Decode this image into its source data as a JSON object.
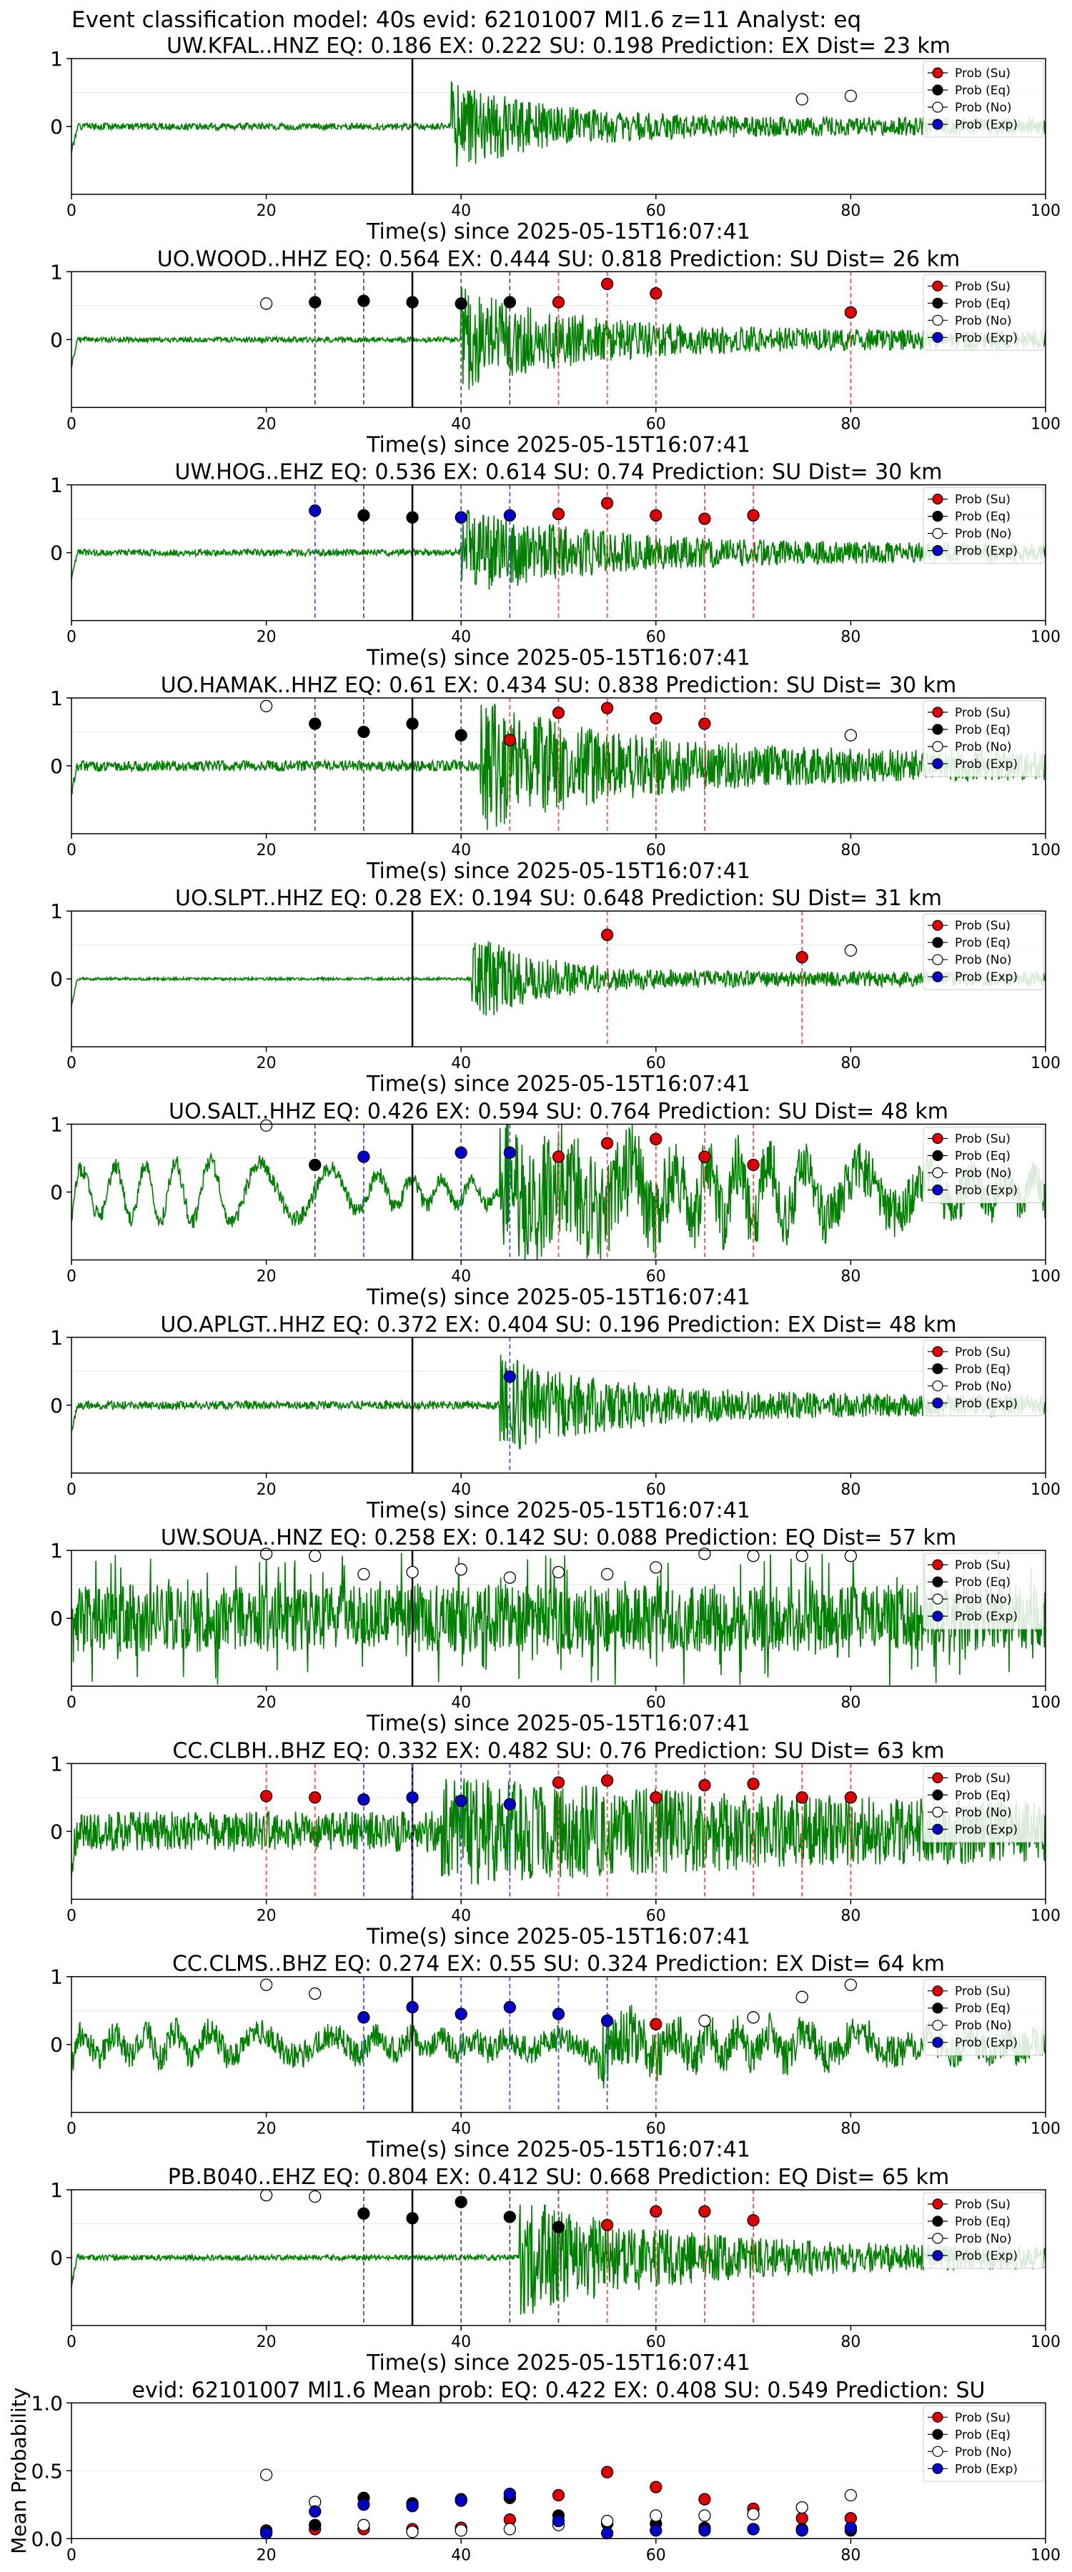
{
  "suptitle": "Event classification model: 40s evid: 62101007 Ml1.6 z=11 Analyst: eq",
  "legend_labels": [
    "Prob (Su)",
    "Prob (Eq)",
    "Prob (No)",
    "Prob (Exp)"
  ],
  "colors": {
    "su": "#e00000",
    "eq": "#000000",
    "no": "#ffffff",
    "exp": "#0000cc",
    "trace": "#008000",
    "su_line": "#ff4d4d",
    "eq_line": "#555555",
    "exp_line": "#4d4dff"
  },
  "chart_data": [
    {
      "type": "line",
      "title": "UW.KFAL..HNZ   EQ: 0.186  EX: 0.222  SU: 0.198   Prediction: EX    Dist= 23 km",
      "xlabel": "Time(s) since 2025-05-15T16:07:41",
      "ylabel": "",
      "xlim": [
        0,
        100
      ],
      "ylim": [
        -1,
        1
      ],
      "xticks": [
        "0",
        "20",
        "40",
        "60",
        "80",
        "100"
      ],
      "yticks": [
        "0",
        "1"
      ],
      "origin_time": 35,
      "onset": 39,
      "amp": 0.55,
      "noise": 0.05,
      "decay": 10,
      "seed": 1,
      "spiky": 0,
      "low": 0,
      "picks": {
        "su": [],
        "eq": [],
        "no": [
          [
            75,
            0.4
          ],
          [
            80,
            0.45
          ]
        ],
        "exp": []
      },
      "vlines": {
        "su": [],
        "eq": [],
        "exp": []
      }
    },
    {
      "type": "line",
      "title": "UO.WOOD..HHZ   EQ: 0.564  EX: 0.444  SU: 0.818   Prediction: SU    Dist= 26 km",
      "xlabel": "Time(s) since 2025-05-15T16:07:41",
      "ylabel": "",
      "xlim": [
        0,
        100
      ],
      "ylim": [
        -1,
        1
      ],
      "xticks": [
        "0",
        "20",
        "40",
        "60",
        "80",
        "100"
      ],
      "yticks": [
        "0",
        "1"
      ],
      "origin_time": 35,
      "onset": 40,
      "amp": 0.65,
      "noise": 0.04,
      "decay": 12,
      "seed": 2,
      "spiky": 0,
      "low": 0,
      "picks": {
        "su": [
          [
            50,
            0.55
          ],
          [
            55,
            0.82
          ],
          [
            60,
            0.68
          ],
          [
            80,
            0.4
          ]
        ],
        "eq": [
          [
            25,
            0.55
          ],
          [
            30,
            0.57
          ],
          [
            35,
            0.55
          ],
          [
            40,
            0.53
          ],
          [
            45,
            0.55
          ]
        ],
        "no": [
          [
            20,
            0.53
          ]
        ],
        "exp": []
      },
      "vlines": {
        "su": [
          50,
          55,
          60,
          80
        ],
        "eq": [
          25,
          30,
          40,
          45
        ],
        "exp": []
      }
    },
    {
      "type": "line",
      "title": "UW.HOG..EHZ   EQ: 0.536  EX: 0.614  SU: 0.74   Prediction: SU    Dist= 30 km",
      "xlabel": "Time(s) since 2025-05-15T16:07:41",
      "ylabel": "",
      "xlim": [
        0,
        100
      ],
      "ylim": [
        -1,
        1
      ],
      "xticks": [
        "0",
        "20",
        "40",
        "60",
        "80",
        "100"
      ],
      "yticks": [
        "0",
        "1"
      ],
      "origin_time": 35,
      "onset": 40,
      "amp": 0.55,
      "noise": 0.05,
      "decay": 14,
      "seed": 3,
      "spiky": 0,
      "low": 0,
      "picks": {
        "su": [
          [
            50,
            0.57
          ],
          [
            55,
            0.73
          ],
          [
            60,
            0.55
          ],
          [
            65,
            0.5
          ],
          [
            70,
            0.55
          ]
        ],
        "eq": [
          [
            30,
            0.55
          ],
          [
            35,
            0.52
          ]
        ],
        "no": [],
        "exp": [
          [
            25,
            0.62
          ],
          [
            40,
            0.52
          ],
          [
            45,
            0.55
          ]
        ]
      },
      "vlines": {
        "su": [
          50,
          55,
          60,
          65,
          70
        ],
        "eq": [
          30
        ],
        "exp": [
          25,
          40,
          45
        ]
      }
    },
    {
      "type": "line",
      "title": "UO.HAMAK..HHZ   EQ: 0.61  EX: 0.434  SU: 0.838   Prediction: SU    Dist= 30 km",
      "xlabel": "Time(s) since 2025-05-15T16:07:41",
      "ylabel": "",
      "xlim": [
        0,
        100
      ],
      "ylim": [
        -1,
        1
      ],
      "xticks": [
        "0",
        "20",
        "40",
        "60",
        "80",
        "100"
      ],
      "yticks": [
        "0",
        "1"
      ],
      "origin_time": 35,
      "onset": 42,
      "amp": 0.8,
      "noise": 0.08,
      "decay": 15,
      "seed": 4,
      "spiky": 0,
      "low": 0,
      "picks": {
        "su": [
          [
            45,
            0.38
          ],
          [
            50,
            0.78
          ],
          [
            55,
            0.85
          ],
          [
            60,
            0.7
          ],
          [
            65,
            0.62
          ]
        ],
        "eq": [
          [
            25,
            0.62
          ],
          [
            30,
            0.5
          ],
          [
            35,
            0.62
          ],
          [
            40,
            0.45
          ]
        ],
        "no": [
          [
            20,
            0.88
          ],
          [
            80,
            0.45
          ]
        ],
        "exp": []
      },
      "vlines": {
        "su": [
          45,
          50,
          55,
          60,
          65
        ],
        "eq": [
          25,
          30,
          40
        ],
        "exp": []
      }
    },
    {
      "type": "line",
      "title": "UO.SLPT..HHZ   EQ: 0.28  EX: 0.194  SU: 0.648   Prediction: SU    Dist= 31 km",
      "xlabel": "Time(s) since 2025-05-15T16:07:41",
      "ylabel": "",
      "xlim": [
        0,
        100
      ],
      "ylim": [
        -1,
        1
      ],
      "xticks": [
        "0",
        "20",
        "40",
        "60",
        "80",
        "100"
      ],
      "yticks": [
        "0",
        "1"
      ],
      "origin_time": 35,
      "onset": 41,
      "amp": 0.6,
      "noise": 0.02,
      "decay": 7,
      "seed": 5,
      "spiky": 0,
      "low": 0,
      "picks": {
        "su": [
          [
            55,
            0.65
          ],
          [
            75,
            0.32
          ]
        ],
        "eq": [],
        "no": [
          [
            80,
            0.42
          ]
        ],
        "exp": []
      },
      "vlines": {
        "su": [
          55,
          75
        ],
        "eq": [],
        "exp": []
      }
    },
    {
      "type": "line",
      "title": "UO.SALT..HHZ   EQ: 0.426  EX: 0.594  SU: 0.764   Prediction: SU    Dist= 48 km",
      "xlabel": "Time(s) since 2025-05-15T16:07:41",
      "ylabel": "",
      "xlim": [
        0,
        100
      ],
      "ylim": [
        -1,
        1
      ],
      "xticks": [
        "0",
        "20",
        "40",
        "60",
        "80",
        "100"
      ],
      "yticks": [
        "0",
        "1"
      ],
      "origin_time": 35,
      "onset": 44,
      "amp": 0.85,
      "noise": 0.12,
      "decay": 20,
      "seed": 6,
      "spiky": 0,
      "low": 0.45,
      "picks": {
        "su": [
          [
            50,
            0.52
          ],
          [
            55,
            0.72
          ],
          [
            60,
            0.78
          ],
          [
            65,
            0.52
          ],
          [
            70,
            0.4
          ]
        ],
        "eq": [
          [
            25,
            0.4
          ]
        ],
        "no": [
          [
            20,
            0.98
          ]
        ],
        "exp": [
          [
            30,
            0.52
          ],
          [
            40,
            0.58
          ],
          [
            45,
            0.58
          ]
        ]
      },
      "vlines": {
        "su": [
          50,
          55,
          60,
          65,
          70
        ],
        "eq": [
          25
        ],
        "exp": [
          30,
          40,
          45
        ]
      }
    },
    {
      "type": "line",
      "title": "UO.APLGT..HHZ   EQ: 0.372  EX: 0.404  SU: 0.196   Prediction: EX    Dist= 48 km",
      "xlabel": "Time(s) since 2025-05-15T16:07:41",
      "ylabel": "",
      "xlim": [
        0,
        100
      ],
      "ylim": [
        -1,
        1
      ],
      "xticks": [
        "0",
        "20",
        "40",
        "60",
        "80",
        "100"
      ],
      "yticks": [
        "0",
        "1"
      ],
      "origin_time": 35,
      "onset": 44,
      "amp": 0.6,
      "noise": 0.06,
      "decay": 12,
      "seed": 7,
      "spiky": 0,
      "low": 0,
      "picks": {
        "su": [],
        "eq": [],
        "no": [],
        "exp": [
          [
            45,
            0.42
          ]
        ]
      },
      "vlines": {
        "su": [],
        "eq": [],
        "exp": [
          45
        ]
      }
    },
    {
      "type": "line",
      "title": "UW.SOUA..HNZ   EQ: 0.258  EX: 0.142  SU: 0.088   Prediction: EQ    Dist= 57 km",
      "xlabel": "Time(s) since 2025-05-15T16:07:41",
      "ylabel": "",
      "xlim": [
        0,
        100
      ],
      "ylim": [
        -1,
        1
      ],
      "xticks": [
        "0",
        "20",
        "40",
        "60",
        "80",
        "100"
      ],
      "yticks": [
        "0",
        "1"
      ],
      "origin_time": 35,
      "onset": 0,
      "amp": 0,
      "noise": 0.55,
      "decay": 10,
      "seed": 8,
      "spiky": 1,
      "low": 0,
      "picks": {
        "su": [],
        "eq": [],
        "no": [
          [
            20,
            0.95
          ],
          [
            25,
            0.92
          ],
          [
            30,
            0.65
          ],
          [
            35,
            0.68
          ],
          [
            40,
            0.72
          ],
          [
            45,
            0.6
          ],
          [
            50,
            0.68
          ],
          [
            55,
            0.65
          ],
          [
            60,
            0.75
          ],
          [
            65,
            0.95
          ],
          [
            70,
            0.92
          ],
          [
            75,
            0.92
          ],
          [
            80,
            0.92
          ]
        ],
        "exp": []
      },
      "vlines": {
        "su": [],
        "eq": [],
        "exp": []
      }
    },
    {
      "type": "line",
      "title": "CC.CLBH..BHZ   EQ: 0.332  EX: 0.482  SU: 0.76   Prediction: SU    Dist= 63 km",
      "xlabel": "Time(s) since 2025-05-15T16:07:41",
      "ylabel": "",
      "xlim": [
        0,
        100
      ],
      "ylim": [
        -1,
        1
      ],
      "xticks": [
        "0",
        "20",
        "40",
        "60",
        "80",
        "100"
      ],
      "yticks": [
        "0",
        "1"
      ],
      "origin_time": 35,
      "onset": 38,
      "amp": 0.45,
      "noise": 0.3,
      "decay": 40,
      "seed": 9,
      "spiky": 0,
      "low": 0,
      "picks": {
        "su": [
          [
            20,
            0.52
          ],
          [
            25,
            0.5
          ],
          [
            50,
            0.72
          ],
          [
            55,
            0.75
          ],
          [
            60,
            0.5
          ],
          [
            65,
            0.68
          ],
          [
            70,
            0.7
          ],
          [
            75,
            0.5
          ],
          [
            80,
            0.5
          ]
        ],
        "eq": [],
        "no": [],
        "exp": [
          [
            30,
            0.47
          ],
          [
            35,
            0.5
          ],
          [
            40,
            0.45
          ],
          [
            45,
            0.4
          ]
        ]
      },
      "vlines": {
        "su": [
          20,
          25,
          50,
          55,
          60,
          65,
          70,
          75,
          80
        ],
        "eq": [],
        "exp": [
          30,
          35,
          40,
          45
        ]
      }
    },
    {
      "type": "line",
      "title": "CC.CLMS..BHZ   EQ: 0.274  EX: 0.55  SU: 0.324   Prediction: EX    Dist= 64 km",
      "xlabel": "Time(s) since 2025-05-15T16:07:41",
      "ylabel": "",
      "xlim": [
        0,
        100
      ],
      "ylim": [
        -1,
        1
      ],
      "xticks": [
        "0",
        "20",
        "40",
        "60",
        "80",
        "100"
      ],
      "yticks": [
        "0",
        "1"
      ],
      "origin_time": 35,
      "onset": 54,
      "amp": 0.35,
      "noise": 0.2,
      "decay": 6,
      "seed": 10,
      "spiky": 0,
      "low": 0.2,
      "picks": {
        "su": [
          [
            60,
            0.3
          ]
        ],
        "eq": [],
        "no": [
          [
            20,
            0.88
          ],
          [
            25,
            0.75
          ],
          [
            65,
            0.35
          ],
          [
            70,
            0.4
          ],
          [
            75,
            0.7
          ],
          [
            80,
            0.88
          ]
        ],
        "exp": [
          [
            30,
            0.4
          ],
          [
            35,
            0.55
          ],
          [
            40,
            0.45
          ],
          [
            45,
            0.55
          ],
          [
            50,
            0.45
          ],
          [
            55,
            0.35
          ]
        ]
      },
      "vlines": {
        "su": [
          60
        ],
        "eq": [],
        "exp": [
          30,
          40,
          45,
          50,
          55
        ]
      }
    },
    {
      "type": "line",
      "title": "PB.B040..EHZ   EQ: 0.804  EX: 0.412  SU: 0.668   Prediction: EQ    Dist= 65 km",
      "xlabel": "Time(s) since 2025-05-15T16:07:41",
      "ylabel": "",
      "xlim": [
        0,
        100
      ],
      "ylim": [
        -1,
        1
      ],
      "xticks": [
        "0",
        "20",
        "40",
        "60",
        "80",
        "100"
      ],
      "yticks": [
        "0",
        "1"
      ],
      "origin_time": 35,
      "onset": 46,
      "amp": 0.75,
      "noise": 0.04,
      "decay": 15,
      "seed": 11,
      "spiky": 0,
      "low": 0,
      "picks": {
        "su": [
          [
            55,
            0.48
          ],
          [
            60,
            0.68
          ],
          [
            65,
            0.68
          ],
          [
            70,
            0.55
          ]
        ],
        "eq": [
          [
            30,
            0.65
          ],
          [
            35,
            0.58
          ],
          [
            40,
            0.82
          ],
          [
            45,
            0.6
          ],
          [
            50,
            0.45
          ]
        ],
        "no": [
          [
            20,
            0.92
          ],
          [
            25,
            0.9
          ]
        ],
        "exp": []
      },
      "vlines": {
        "su": [
          55,
          60,
          65,
          70
        ],
        "eq": [
          30,
          40,
          45,
          50
        ],
        "exp": []
      }
    },
    {
      "type": "scatter",
      "title": "evid: 62101007  Ml1.6   Mean prob:   EQ: 0.422  EX: 0.408  SU: 0.549   Prediction: SU",
      "xlabel": "",
      "ylabel": "Mean Probability",
      "xlim": [
        0,
        100
      ],
      "ylim": [
        0,
        1
      ],
      "xticks": [
        "0",
        "20",
        "40",
        "60",
        "80",
        "100"
      ],
      "yticks": [
        "0.0",
        "0.5",
        "1.0"
      ],
      "picks": {
        "su": [
          [
            20,
            0.06
          ],
          [
            25,
            0.07
          ],
          [
            30,
            0.07
          ],
          [
            35,
            0.07
          ],
          [
            40,
            0.08
          ],
          [
            45,
            0.14
          ],
          [
            50,
            0.32
          ],
          [
            55,
            0.49
          ],
          [
            60,
            0.38
          ],
          [
            65,
            0.29
          ],
          [
            70,
            0.22
          ],
          [
            75,
            0.15
          ],
          [
            80,
            0.15
          ]
        ],
        "eq": [
          [
            20,
            0.05
          ],
          [
            25,
            0.1
          ],
          [
            30,
            0.3
          ],
          [
            35,
            0.26
          ],
          [
            40,
            0.29
          ],
          [
            45,
            0.3
          ],
          [
            50,
            0.17
          ],
          [
            55,
            0.11
          ],
          [
            60,
            0.11
          ],
          [
            65,
            0.08
          ],
          [
            70,
            0.07
          ],
          [
            75,
            0.07
          ],
          [
            80,
            0.06
          ]
        ],
        "no": [
          [
            20,
            0.47
          ],
          [
            25,
            0.27
          ],
          [
            30,
            0.1
          ],
          [
            35,
            0.05
          ],
          [
            40,
            0.06
          ],
          [
            45,
            0.07
          ],
          [
            50,
            0.1
          ],
          [
            55,
            0.13
          ],
          [
            60,
            0.17
          ],
          [
            65,
            0.17
          ],
          [
            70,
            0.18
          ],
          [
            75,
            0.23
          ],
          [
            80,
            0.32
          ]
        ],
        "exp": [
          [
            20,
            0.04
          ],
          [
            25,
            0.2
          ],
          [
            30,
            0.25
          ],
          [
            35,
            0.24
          ],
          [
            40,
            0.28
          ],
          [
            45,
            0.33
          ],
          [
            50,
            0.13
          ],
          [
            55,
            0.04
          ],
          [
            60,
            0.06
          ],
          [
            65,
            0.06
          ],
          [
            70,
            0.07
          ],
          [
            75,
            0.06
          ],
          [
            80,
            0.08
          ]
        ]
      },
      "vlines": {
        "su": [],
        "eq": [],
        "exp": []
      }
    }
  ]
}
